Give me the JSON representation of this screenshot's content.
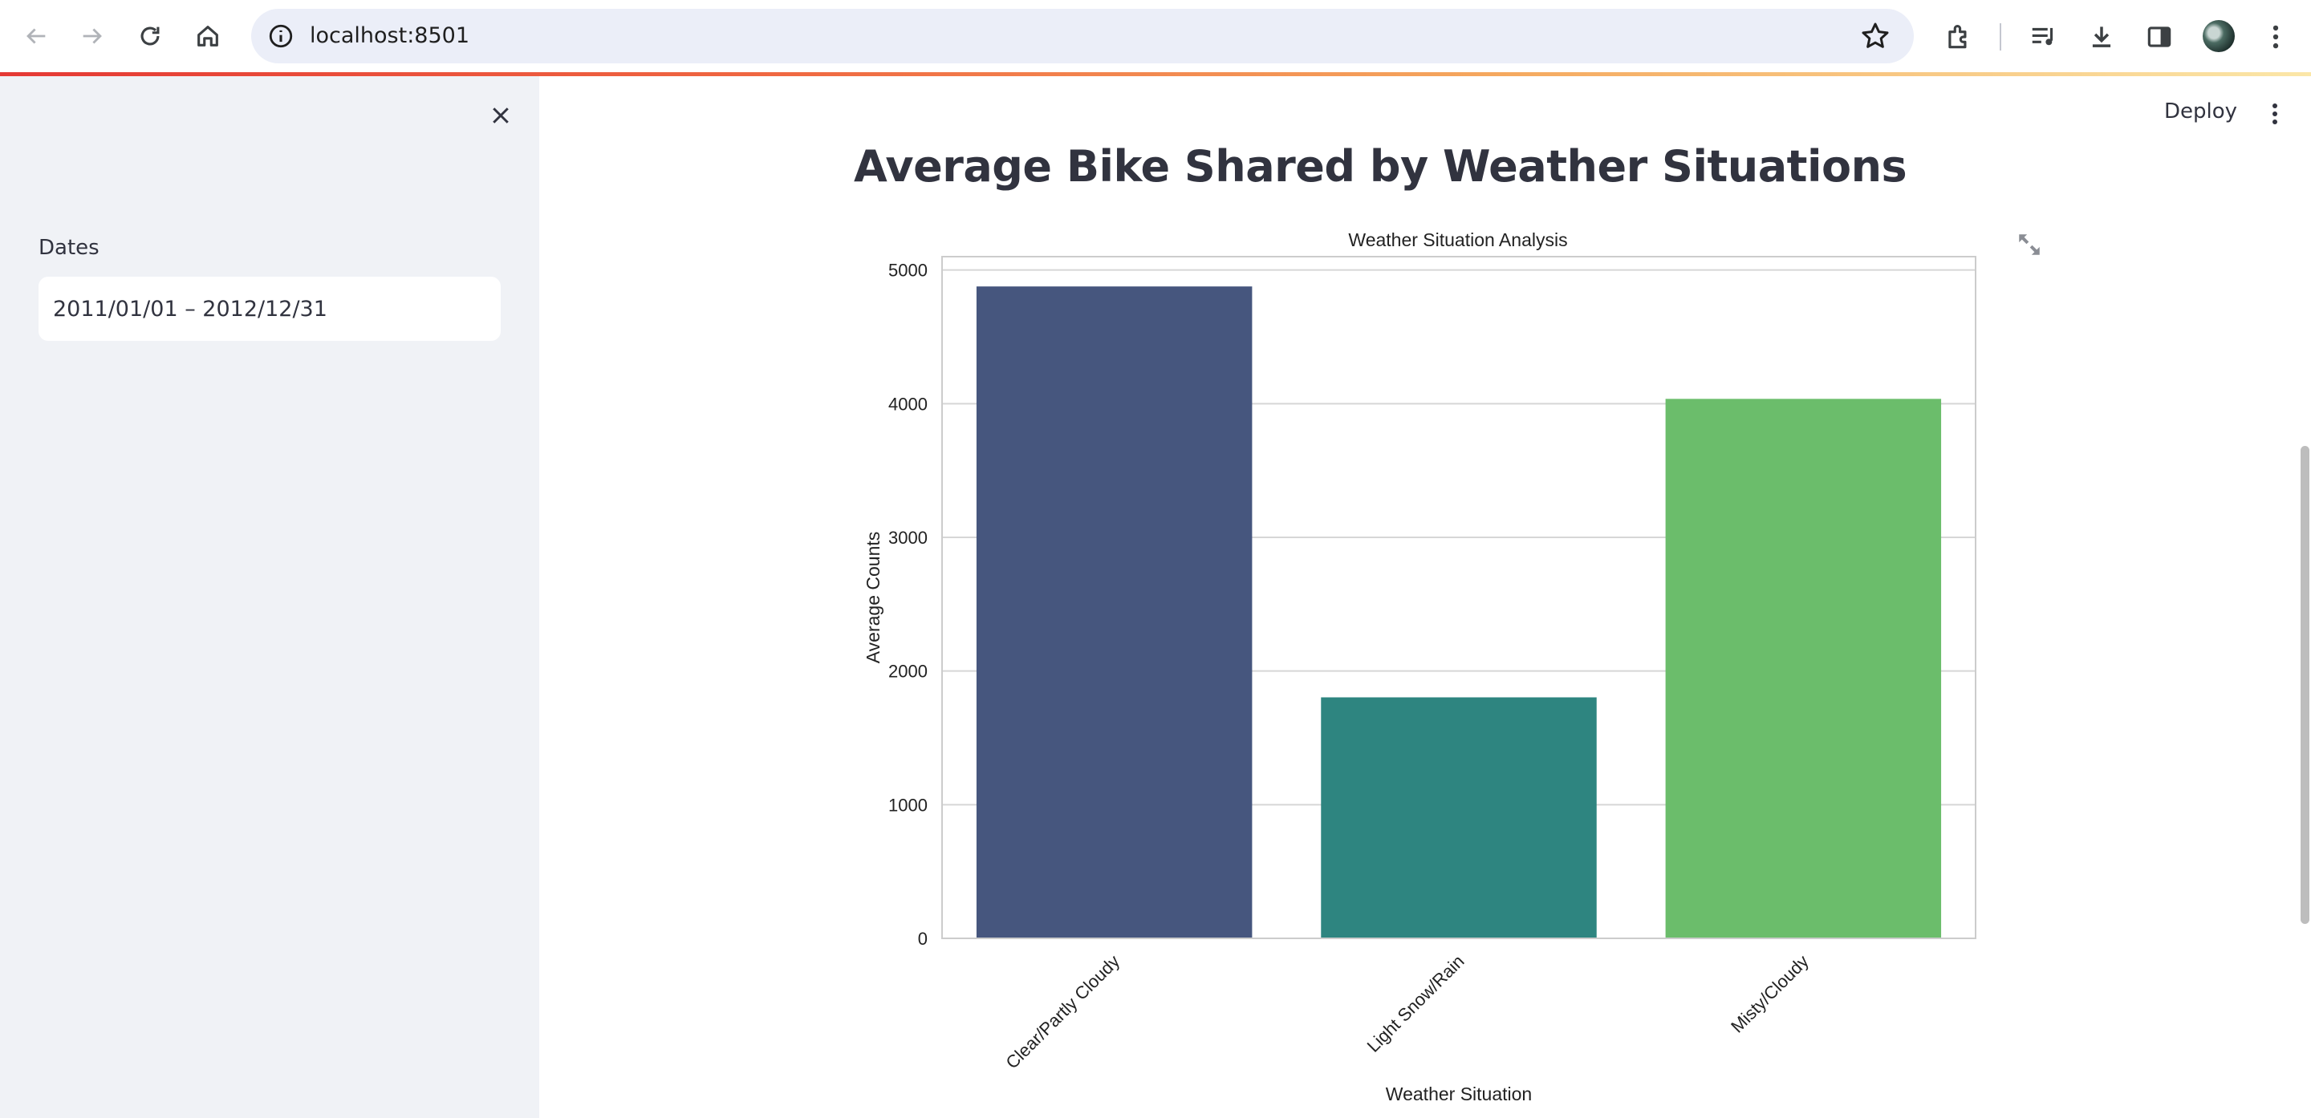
{
  "browser": {
    "url": "localhost:8501",
    "icons": [
      "back-icon",
      "forward-icon",
      "reload-icon",
      "home-icon",
      "site-info-icon",
      "bookmark-star-icon",
      "extensions-icon",
      "media-icon",
      "downloads-icon",
      "side-panel-icon",
      "profile-avatar",
      "browser-menu-icon"
    ]
  },
  "sidebar": {
    "dates_label": "Dates",
    "dates_value": "2011/01/01 – 2012/12/31"
  },
  "header": {
    "deploy_label": "Deploy"
  },
  "main": {
    "title": "Average Bike Shared by Weather Situations"
  },
  "colors": {
    "sidebar_bg": "#f0f2f6",
    "bars": [
      "#46567e",
      "#2e8580",
      "#6bbd6b"
    ]
  },
  "chart_data": {
    "type": "bar",
    "title": "Weather Situation Analysis",
    "xlabel": "Weather Situation",
    "ylabel": "Average Counts",
    "categories": [
      "Clear/Partly Cloudy",
      "Light Snow/Rain",
      "Misty/Cloudy"
    ],
    "values": [
      4877,
      1803,
      4036
    ],
    "ylim": [
      0,
      5100
    ],
    "yticks": [
      0,
      1000,
      2000,
      3000,
      4000,
      5000
    ],
    "grid": "horizontal",
    "legend": "none"
  }
}
